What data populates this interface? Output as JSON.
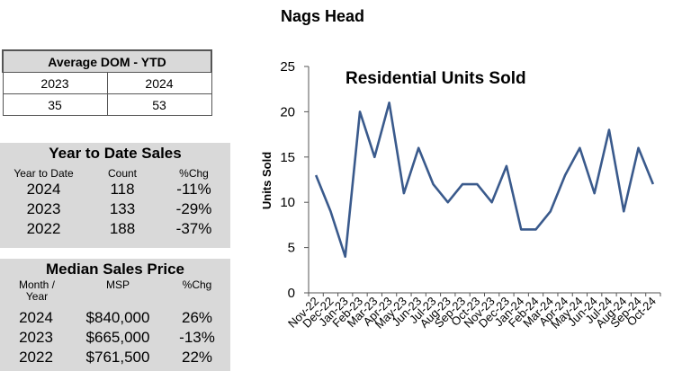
{
  "page_title": "Nags Head",
  "dom": {
    "title": "Average DOM - YTD",
    "years": [
      "2023",
      "2024"
    ],
    "values": [
      "35",
      "53"
    ]
  },
  "ytd": {
    "title": "Year to Date Sales",
    "headers": [
      "Year to Date",
      "Count",
      "%Chg"
    ],
    "rows": [
      [
        "2024",
        "118",
        "-11%"
      ],
      [
        "2023",
        "133",
        "-29%"
      ],
      [
        "2022",
        "188",
        "-37%"
      ]
    ]
  },
  "msp": {
    "title": "Median Sales Price",
    "headers": [
      "Month / Year",
      "MSP",
      "%Chg"
    ],
    "rows": [
      [
        "2024",
        "$840,000",
        "26%"
      ],
      [
        "2023",
        "$665,000",
        "-13%"
      ],
      [
        "2022",
        "$761,500",
        "22%"
      ]
    ]
  },
  "chart_data": {
    "type": "line",
    "title": "Residential Units Sold",
    "ylabel": "Units Sold",
    "xlabel": "",
    "ylim": [
      0,
      25
    ],
    "yticks": [
      0,
      5,
      10,
      15,
      20,
      25
    ],
    "grid": false,
    "line_color": "#3a5a8c",
    "categories": [
      "Nov-22",
      "Dec-22",
      "Jan-23",
      "Feb-23",
      "Mar-23",
      "Apr-23",
      "May-23",
      "Jun-23",
      "Jul-23",
      "Aug-23",
      "Sep-23",
      "Oct-23",
      "Nov-23",
      "Dec-23",
      "Jan-24",
      "Feb-24",
      "Mar-24",
      "Apr-24",
      "May-24",
      "Jun-24",
      "Jul-24",
      "Aug-24",
      "Sep-24",
      "Oct-24"
    ],
    "values": [
      13,
      9,
      4,
      20,
      15,
      21,
      11,
      16,
      12,
      10,
      12,
      12,
      10,
      14,
      7,
      7,
      9,
      13,
      16,
      11,
      18,
      9,
      16,
      12
    ]
  }
}
